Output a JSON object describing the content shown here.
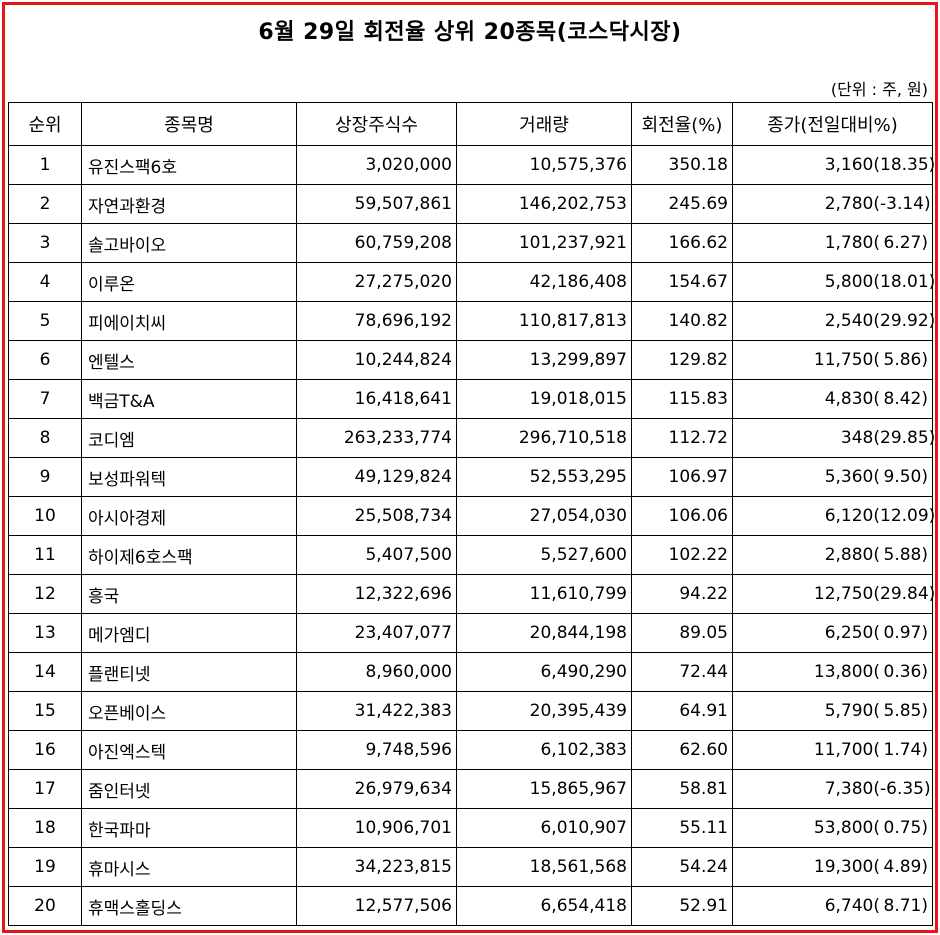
{
  "title": "6월 29일 회전율 상위 20종목(코스닥시장)",
  "unit": "(단위 : 주, 원)",
  "frame_color": "#e8141b",
  "headers": {
    "rank": "순위",
    "name": "종목명",
    "shares": "상장주식수",
    "volume": "거래량",
    "turnover": "회전율(%)",
    "price": "종가(전일대비%)"
  },
  "rows": [
    {
      "rank": "1",
      "name": "유진스팩6호",
      "shares": "3,020,000",
      "volume": "10,575,376",
      "turnover": "350.18",
      "price": "3,160(",
      "change": "18.35)"
    },
    {
      "rank": "2",
      "name": "자연과환경",
      "shares": "59,507,861",
      "volume": "146,202,753",
      "turnover": "245.69",
      "price": "2,780(",
      "change": "-3.14)"
    },
    {
      "rank": "3",
      "name": "솔고바이오",
      "shares": "60,759,208",
      "volume": "101,237,921",
      "turnover": "166.62",
      "price": "1,780(",
      "change": "6.27)"
    },
    {
      "rank": "4",
      "name": "이루온",
      "shares": "27,275,020",
      "volume": "42,186,408",
      "turnover": "154.67",
      "price": "5,800(",
      "change": "18.01)"
    },
    {
      "rank": "5",
      "name": "피에이치씨",
      "shares": "78,696,192",
      "volume": "110,817,813",
      "turnover": "140.82",
      "price": "2,540(",
      "change": "29.92)"
    },
    {
      "rank": "6",
      "name": "엔텔스",
      "shares": "10,244,824",
      "volume": "13,299,897",
      "turnover": "129.82",
      "price": "11,750(",
      "change": "5.86)"
    },
    {
      "rank": "7",
      "name": "백금T&A",
      "shares": "16,418,641",
      "volume": "19,018,015",
      "turnover": "115.83",
      "price": "4,830(",
      "change": "8.42)"
    },
    {
      "rank": "8",
      "name": "코디엠",
      "shares": "263,233,774",
      "volume": "296,710,518",
      "turnover": "112.72",
      "price": "348(",
      "change": "29.85)"
    },
    {
      "rank": "9",
      "name": "보성파워텍",
      "shares": "49,129,824",
      "volume": "52,553,295",
      "turnover": "106.97",
      "price": "5,360(",
      "change": "9.50)"
    },
    {
      "rank": "10",
      "name": "아시아경제",
      "shares": "25,508,734",
      "volume": "27,054,030",
      "turnover": "106.06",
      "price": "6,120(",
      "change": "12.09)"
    },
    {
      "rank": "11",
      "name": "하이제6호스팩",
      "shares": "5,407,500",
      "volume": "5,527,600",
      "turnover": "102.22",
      "price": "2,880(",
      "change": "5.88)"
    },
    {
      "rank": "12",
      "name": "흥국",
      "shares": "12,322,696",
      "volume": "11,610,799",
      "turnover": "94.22",
      "price": "12,750(",
      "change": "29.84)"
    },
    {
      "rank": "13",
      "name": "메가엠디",
      "shares": "23,407,077",
      "volume": "20,844,198",
      "turnover": "89.05",
      "price": "6,250(",
      "change": "0.97)"
    },
    {
      "rank": "14",
      "name": "플랜티넷",
      "shares": "8,960,000",
      "volume": "6,490,290",
      "turnover": "72.44",
      "price": "13,800(",
      "change": "0.36)"
    },
    {
      "rank": "15",
      "name": "오픈베이스",
      "shares": "31,422,383",
      "volume": "20,395,439",
      "turnover": "64.91",
      "price": "5,790(",
      "change": "5.85)"
    },
    {
      "rank": "16",
      "name": "아진엑스텍",
      "shares": "9,748,596",
      "volume": "6,102,383",
      "turnover": "62.60",
      "price": "11,700(",
      "change": "1.74)"
    },
    {
      "rank": "17",
      "name": "줌인터넷",
      "shares": "26,979,634",
      "volume": "15,865,967",
      "turnover": "58.81",
      "price": "7,380(",
      "change": "-6.35)"
    },
    {
      "rank": "18",
      "name": "한국파마",
      "shares": "10,906,701",
      "volume": "6,010,907",
      "turnover": "55.11",
      "price": "53,800(",
      "change": "0.75)"
    },
    {
      "rank": "19",
      "name": "휴마시스",
      "shares": "34,223,815",
      "volume": "18,561,568",
      "turnover": "54.24",
      "price": "19,300(",
      "change": "4.89)"
    },
    {
      "rank": "20",
      "name": "휴맥스홀딩스",
      "shares": "12,577,506",
      "volume": "6,654,418",
      "turnover": "52.91",
      "price": "6,740(",
      "change": "8.71)"
    }
  ]
}
